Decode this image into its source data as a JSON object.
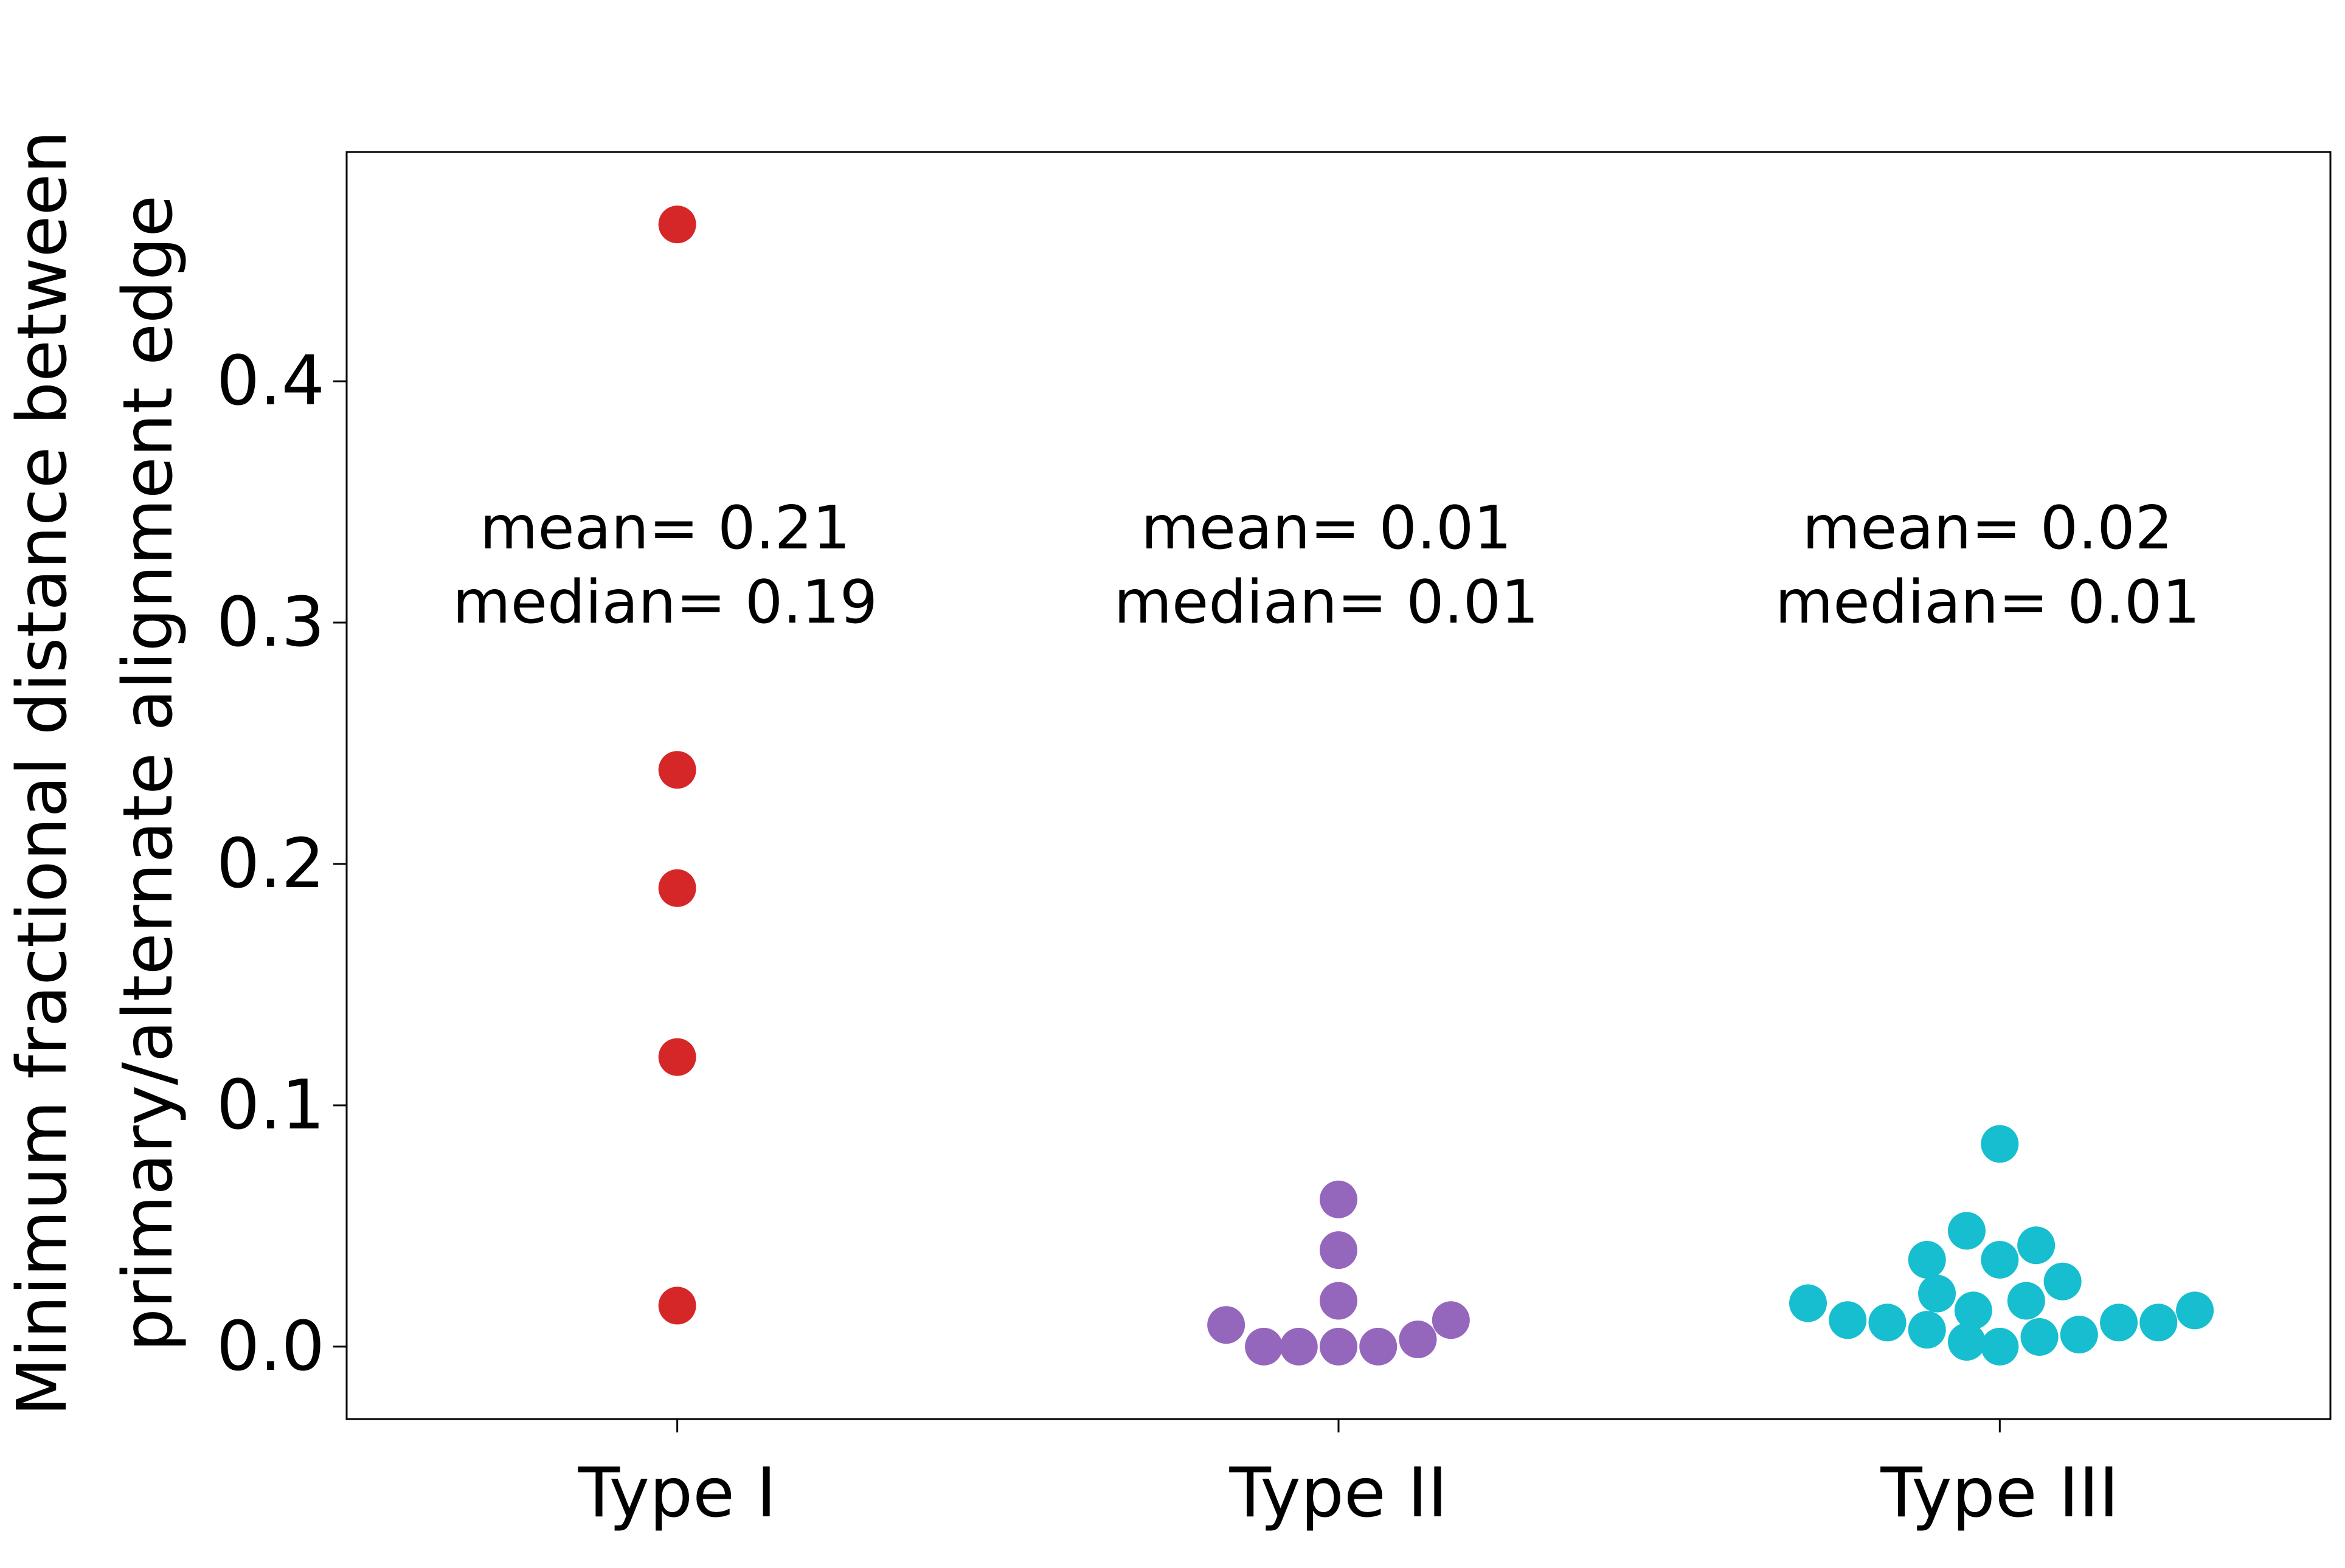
{
  "chart_data": {
    "type": "scatter",
    "subtype": "swarm",
    "title": "",
    "xlabel": "",
    "ylabel_lines": [
      "Minimum fractional distance between",
      "primary/alternate alignment edge"
    ],
    "categories": [
      "Type I",
      "Type II",
      "Type III"
    ],
    "ylim": [
      -0.03,
      0.495
    ],
    "yticks": [
      0.0,
      0.1,
      0.2,
      0.3,
      0.4
    ],
    "ytick_labels": [
      "0.0",
      "0.1",
      "0.2",
      "0.3",
      "0.4"
    ],
    "grid": false,
    "legend": "none",
    "series": [
      {
        "category": "Type I",
        "color": "#d62728",
        "points": [
          {
            "x": 0.0,
            "y": 0.465
          },
          {
            "x": 0.0,
            "y": 0.239
          },
          {
            "x": 0.0,
            "y": 0.19
          },
          {
            "x": 0.0,
            "y": 0.12
          },
          {
            "x": 0.0,
            "y": 0.017
          }
        ],
        "annotation": [
          "mean= 0.21",
          "median= 0.19"
        ]
      },
      {
        "category": "Type II",
        "color": "#9467bd",
        "points": [
          {
            "x": 1.0,
            "y": 0.061
          },
          {
            "x": 1.0,
            "y": 0.04
          },
          {
            "x": 1.0,
            "y": 0.019
          },
          {
            "x": 0.83,
            "y": 0.009
          },
          {
            "x": 0.887,
            "y": 0.0
          },
          {
            "x": 0.94,
            "y": 0.0
          },
          {
            "x": 1.0,
            "y": 0.0
          },
          {
            "x": 1.06,
            "y": 0.0
          },
          {
            "x": 1.12,
            "y": 0.003
          },
          {
            "x": 1.17,
            "y": 0.011
          }
        ],
        "annotation": [
          "mean= 0.01",
          "median= 0.01"
        ]
      },
      {
        "category": "Type III",
        "color": "#17becf",
        "points": [
          {
            "x": 2.0,
            "y": 0.084
          },
          {
            "x": 1.95,
            "y": 0.048
          },
          {
            "x": 1.89,
            "y": 0.036
          },
          {
            "x": 2.0,
            "y": 0.036
          },
          {
            "x": 2.055,
            "y": 0.042
          },
          {
            "x": 2.095,
            "y": 0.027
          },
          {
            "x": 1.905,
            "y": 0.022
          },
          {
            "x": 2.04,
            "y": 0.019
          },
          {
            "x": 1.96,
            "y": 0.015
          },
          {
            "x": 1.71,
            "y": 0.018
          },
          {
            "x": 1.77,
            "y": 0.011
          },
          {
            "x": 1.83,
            "y": 0.01
          },
          {
            "x": 1.89,
            "y": 0.007
          },
          {
            "x": 1.95,
            "y": 0.002
          },
          {
            "x": 2.0,
            "y": 0.0
          },
          {
            "x": 2.06,
            "y": 0.004
          },
          {
            "x": 2.12,
            "y": 0.005
          },
          {
            "x": 2.18,
            "y": 0.01
          },
          {
            "x": 2.24,
            "y": 0.01
          },
          {
            "x": 2.295,
            "y": 0.015
          }
        ],
        "annotation": [
          "mean= 0.02",
          "median= 0.01"
        ]
      }
    ]
  }
}
